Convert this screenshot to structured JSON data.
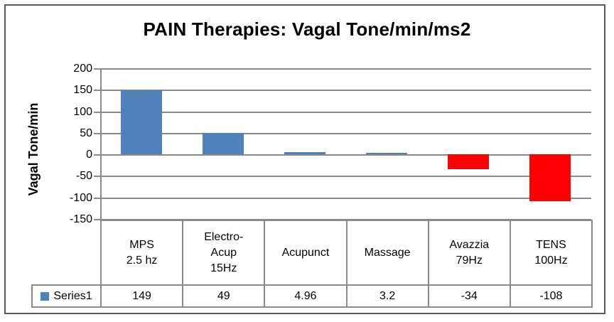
{
  "window": {
    "background": "#ffffff",
    "frame_border_color": "#595959"
  },
  "chart_data": {
    "type": "bar",
    "title": "PAIN Therapies: Vagal Tone/min/ms2",
    "ylabel": "Vagal Tone/min",
    "xlabel": "",
    "categories": [
      "MPS\n2.5 hz",
      "Electro-\nAcup\n15Hz",
      "Acupunct",
      "Massage",
      "Avazzia\n79Hz",
      "TENS\n100Hz"
    ],
    "series": [
      {
        "name": "Series1",
        "values": [
          149,
          49,
          4.96,
          3.2,
          -34,
          -108
        ],
        "marker_color": "#4F81BD"
      }
    ],
    "bar_colors": [
      "#4F81BD",
      "#4F81BD",
      "#4F81BD",
      "#4F81BD",
      "#FF0000",
      "#FF0000"
    ],
    "positive_color": "#4F81BD",
    "negative_color": "#FF0000",
    "ylim": [
      -150,
      200
    ],
    "yticks": [
      200,
      150,
      100,
      50,
      0,
      -50,
      -100,
      -150
    ],
    "grid": true,
    "gridline_color": "#8a8a8a",
    "legend_position": "data-table-left",
    "data_table": {
      "legend_label": "Series1",
      "values_display": [
        "149",
        "49",
        "4.96",
        "3.2",
        "-34",
        "-108"
      ]
    }
  }
}
